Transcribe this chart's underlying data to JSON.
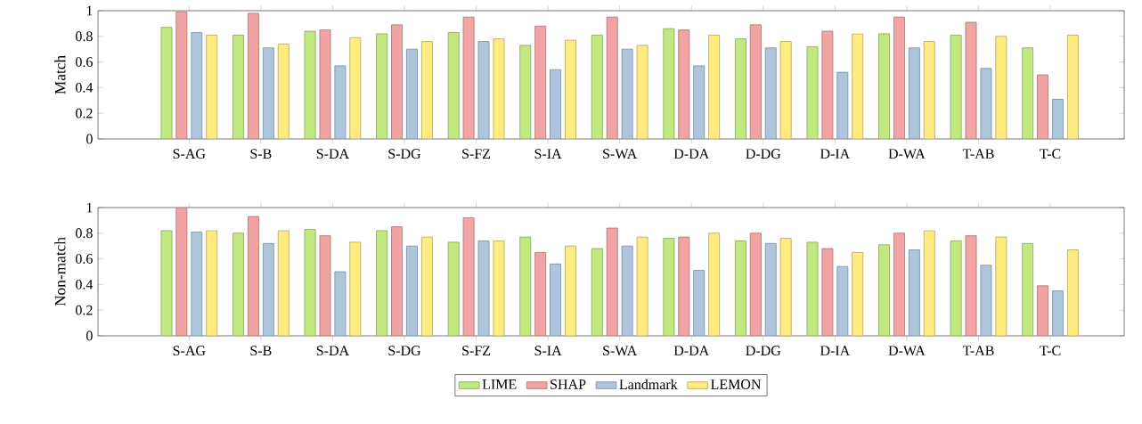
{
  "chart_data": [
    {
      "type": "bar",
      "ylabel": "Match",
      "categories": [
        "S-AG",
        "S-B",
        "S-DA",
        "S-DG",
        "S-FZ",
        "S-IA",
        "S-WA",
        "D-DA",
        "D-DG",
        "D-IA",
        "D-WA",
        "T-AB",
        "T-C"
      ],
      "ylim": [
        0,
        1
      ],
      "yticks": [
        0,
        0.2,
        0.4,
        0.6,
        0.8,
        1
      ],
      "grid": false,
      "series": [
        {
          "color": "#c2e97f",
          "values": [
            0.87,
            0.81,
            0.84,
            0.82,
            0.83,
            0.73,
            0.81,
            0.86,
            0.78,
            0.72,
            0.82,
            0.81,
            0.71
          ]
        },
        {
          "color": "#f2a3a3",
          "values": [
            0.99,
            0.98,
            0.85,
            0.89,
            0.95,
            0.88,
            0.95,
            0.85,
            0.89,
            0.84,
            0.95,
            0.91,
            0.5
          ]
        },
        {
          "color": "#aec6dd",
          "values": [
            0.83,
            0.71,
            0.57,
            0.7,
            0.76,
            0.54,
            0.7,
            0.57,
            0.71,
            0.52,
            0.71,
            0.55,
            0.31
          ]
        },
        {
          "color": "#ffeb80",
          "values": [
            0.81,
            0.74,
            0.79,
            0.76,
            0.78,
            0.77,
            0.73,
            0.81,
            0.76,
            0.82,
            0.76,
            0.8,
            0.81
          ]
        }
      ]
    },
    {
      "type": "bar",
      "ylabel": "Non-match",
      "categories": [
        "S-AG",
        "S-B",
        "S-DA",
        "S-DG",
        "S-FZ",
        "S-IA",
        "S-WA",
        "D-DA",
        "D-DG",
        "D-IA",
        "D-WA",
        "T-AB",
        "T-C"
      ],
      "ylim": [
        0,
        1
      ],
      "yticks": [
        0,
        0.2,
        0.4,
        0.6,
        0.8,
        1
      ],
      "grid": false,
      "legend": "bottom",
      "series": [
        {
          "name": "LIME",
          "color": "#c2e97f",
          "values": [
            0.82,
            0.8,
            0.83,
            0.82,
            0.73,
            0.77,
            0.68,
            0.76,
            0.74,
            0.73,
            0.71,
            0.74,
            0.72
          ]
        },
        {
          "name": "SHAP",
          "color": "#f2a3a3",
          "values": [
            1.0,
            0.93,
            0.78,
            0.85,
            0.92,
            0.65,
            0.84,
            0.77,
            0.8,
            0.68,
            0.8,
            0.78,
            0.39
          ]
        },
        {
          "name": "Landmark",
          "color": "#aec6dd",
          "values": [
            0.81,
            0.72,
            0.5,
            0.7,
            0.74,
            0.56,
            0.7,
            0.51,
            0.72,
            0.54,
            0.67,
            0.55,
            0.35
          ]
        },
        {
          "name": "LEMON",
          "color": "#ffeb80",
          "values": [
            0.82,
            0.82,
            0.73,
            0.77,
            0.74,
            0.7,
            0.77,
            0.8,
            0.76,
            0.65,
            0.82,
            0.77,
            0.67
          ]
        }
      ]
    }
  ]
}
